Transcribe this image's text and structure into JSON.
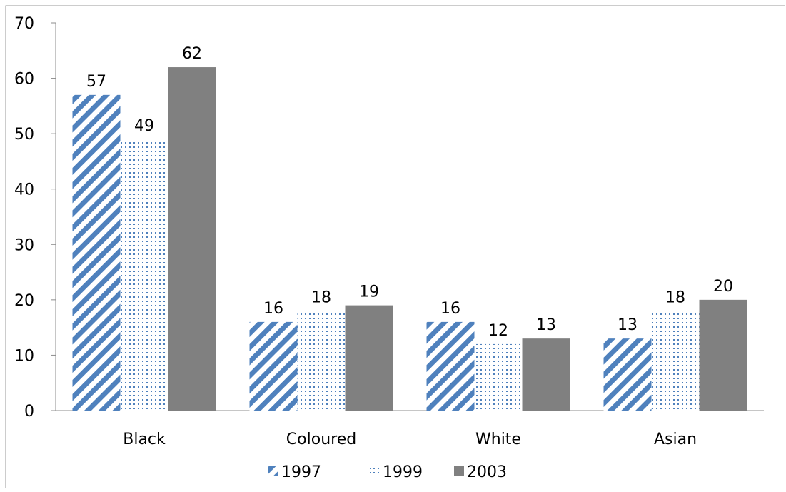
{
  "chart_data": {
    "type": "bar",
    "categories": [
      "Black",
      "Coloured",
      "White",
      "Asian"
    ],
    "series": [
      {
        "name": "1997",
        "values": [
          57,
          16,
          16,
          13
        ],
        "pattern": "diagonal-stripes",
        "color": "#4F81BD"
      },
      {
        "name": "1999",
        "values": [
          49,
          18,
          12,
          18
        ],
        "pattern": "dots",
        "color": "#4F81BD"
      },
      {
        "name": "2003",
        "values": [
          62,
          19,
          13,
          20
        ],
        "pattern": "solid",
        "color": "#808080"
      }
    ],
    "ylim": [
      0,
      70
    ],
    "yticks": [
      0,
      10,
      20,
      30,
      40,
      50,
      60,
      70
    ],
    "title": "",
    "xlabel": "",
    "ylabel": "",
    "legend_position": "bottom",
    "grid": false,
    "data_labels": true
  }
}
